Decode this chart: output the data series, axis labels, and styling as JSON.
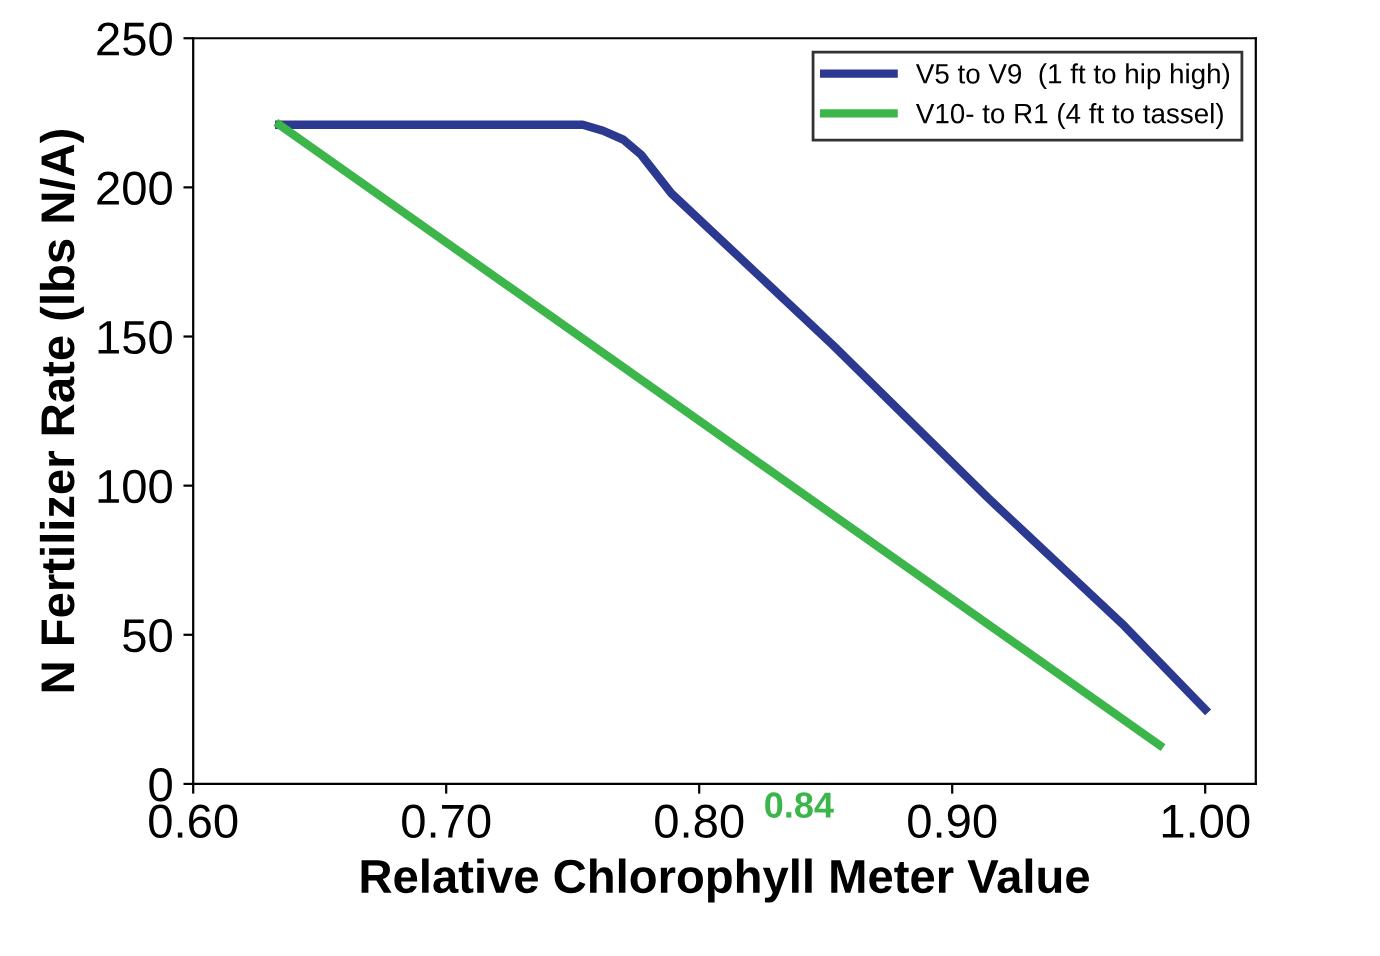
{
  "chart_data": {
    "type": "line",
    "xlabel": "Relative Chlorophyll Meter Value",
    "ylabel": "N Fertilizer Rate (lbs N/A)",
    "xlim": [
      0.6,
      1.02
    ],
    "xticks": [
      {
        "value": 0.6,
        "label": "0.60"
      },
      {
        "value": 0.7,
        "label": "0.70"
      },
      {
        "value": 0.8,
        "label": "0.80"
      },
      {
        "value": 0.9,
        "label": "0.90"
      },
      {
        "value": 1.0,
        "label": "1.00"
      }
    ],
    "ylim": [
      0,
      250
    ],
    "yticks": [
      0,
      50,
      100,
      150,
      200,
      250
    ],
    "grid": false,
    "legend": "top right",
    "marker": "none",
    "line_style": "solid",
    "series": [
      {
        "name": "V5 to V9  (1 ft to hip high)",
        "color": "#2b3990",
        "x": [
          0.634,
          0.754,
          0.762,
          0.77,
          0.777,
          0.789,
          0.853,
          0.914,
          0.968,
          1.0
        ],
        "values": [
          221,
          221,
          219,
          216,
          211,
          198,
          147,
          96,
          53,
          25
        ]
      },
      {
        "name": "V10- to R1 (4 ft to tassel)",
        "color": "#3cb54a",
        "x": [
          0.634,
          0.982
        ],
        "values": [
          221,
          13
        ]
      }
    ],
    "annotations": [
      "0.84"
    ]
  }
}
